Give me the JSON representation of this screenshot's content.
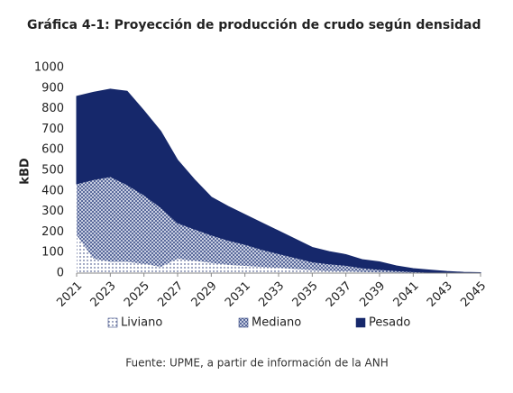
{
  "chart_data": {
    "type": "stacked_area",
    "title": "Gráfica 4-1: Proyección de producción de crudo según densidad",
    "y_label": "kBD",
    "source": "Fuente: UPME, a partir de información de la ANH",
    "x": [
      2021,
      2022,
      2023,
      2024,
      2025,
      2026,
      2027,
      2028,
      2029,
      2030,
      2031,
      2032,
      2033,
      2034,
      2035,
      2036,
      2037,
      2038,
      2039,
      2040,
      2041,
      2042,
      2043,
      2044,
      2045
    ],
    "xlim": [
      2021,
      2045
    ],
    "xticks": [
      2021,
      2023,
      2025,
      2027,
      2029,
      2031,
      2033,
      2035,
      2037,
      2039,
      2041,
      2043,
      2045
    ],
    "ylim": [
      0,
      1000
    ],
    "yticks": [
      0,
      100,
      200,
      300,
      400,
      500,
      600,
      700,
      800,
      900,
      1000
    ],
    "grid": false,
    "legend": "bottom",
    "series": [
      {
        "name": "Liviano",
        "color": "#16286b",
        "pattern": "dots",
        "values": [
          185,
          70,
          55,
          55,
          45,
          30,
          70,
          60,
          50,
          40,
          35,
          30,
          25,
          20,
          15,
          10,
          8,
          5,
          4,
          3,
          2,
          1,
          1,
          0,
          0
        ]
      },
      {
        "name": "Mediano",
        "color": "#16286b",
        "pattern": "check",
        "values": [
          250,
          385,
          415,
          375,
          335,
          290,
          175,
          155,
          135,
          120,
          105,
          85,
          70,
          55,
          40,
          35,
          30,
          20,
          14,
          9,
          5,
          3,
          1,
          1,
          0
        ]
      },
      {
        "name": "Pesado",
        "color": "#16286b",
        "pattern": "solid",
        "values": [
          425,
          425,
          425,
          455,
          410,
          370,
          305,
          240,
          185,
          165,
          145,
          130,
          110,
          90,
          70,
          60,
          52,
          40,
          37,
          23,
          15,
          11,
          6,
          3,
          2
        ]
      }
    ]
  }
}
